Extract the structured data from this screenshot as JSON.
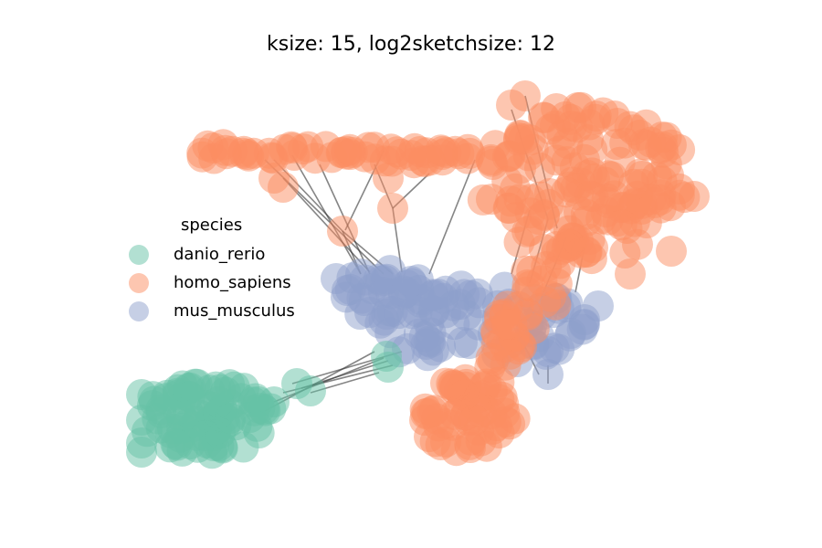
{
  "title": "ksize: 15, log2sketchsize: 12",
  "legend": {
    "title": "species",
    "items": [
      {
        "label": "danio_rerio",
        "color": "#66c2a5"
      },
      {
        "label": "homo_sapiens",
        "color": "#fc8d62"
      },
      {
        "label": "mus_musculus",
        "color": "#8da0cb"
      }
    ]
  },
  "edge_color": "#333333"
}
